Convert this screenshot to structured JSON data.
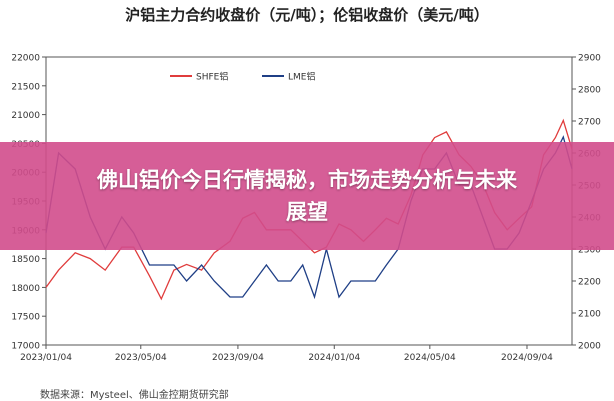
{
  "banner": {
    "text": "佛山铝价今日行情揭秘，市场走势分析与未来展望",
    "overlay_color": "#d24d8c"
  },
  "source_note": "数据来源：Mysteel、佛山金控期货研究部",
  "chart_data": {
    "type": "line",
    "title": "沪铝主力合约收盘价（元/吨）；伦铝收盘价（美元/吨）",
    "xlabel": "",
    "ylabel": "",
    "grid": false,
    "legend_position": "top",
    "x_ticks": [
      "2023/01/04",
      "2023/05/04",
      "2023/09/04",
      "2024/01/04",
      "2024/05/04",
      "2024/09/04"
    ],
    "y_left": {
      "ticks": [
        17000,
        17500,
        18000,
        18500,
        19000,
        19500,
        20000,
        20500,
        21000,
        21500,
        22000
      ],
      "lim": [
        17000,
        22000
      ]
    },
    "y_right": {
      "ticks": [
        2000,
        2100,
        2200,
        2300,
        2400,
        2500,
        2600,
        2700,
        2800,
        2900
      ],
      "lim": [
        2000,
        2900
      ]
    },
    "series": [
      {
        "name": "SHFE铝",
        "axis": "left",
        "color": "#e03c3c",
        "x": [
          "2023-01-04",
          "2023-01-20",
          "2023-02-10",
          "2023-03-01",
          "2023-03-20",
          "2023-04-10",
          "2023-04-25",
          "2023-05-15",
          "2023-05-30",
          "2023-06-15",
          "2023-07-01",
          "2023-07-20",
          "2023-08-05",
          "2023-08-25",
          "2023-09-10",
          "2023-09-25",
          "2023-10-10",
          "2023-10-25",
          "2023-11-10",
          "2023-11-25",
          "2023-12-10",
          "2023-12-25",
          "2024-01-10",
          "2024-01-25",
          "2024-02-10",
          "2024-02-25",
          "2024-03-10",
          "2024-03-25",
          "2024-04-10",
          "2024-04-25",
          "2024-05-10",
          "2024-05-25",
          "2024-06-10",
          "2024-06-25",
          "2024-07-10",
          "2024-07-25",
          "2024-08-10",
          "2024-08-25",
          "2024-09-10",
          "2024-09-25",
          "2024-10-10",
          "2024-10-20",
          "2024-10-31"
        ],
        "values": [
          18000,
          18300,
          18600,
          18500,
          18300,
          18700,
          18700,
          18200,
          17800,
          18300,
          18400,
          18300,
          18600,
          18800,
          19200,
          19300,
          19000,
          19000,
          19000,
          18800,
          18600,
          18700,
          19100,
          19000,
          18800,
          19000,
          19200,
          19100,
          19600,
          20300,
          20600,
          20700,
          20300,
          20100,
          19800,
          19300,
          19000,
          19200,
          19400,
          20300,
          20600,
          20900,
          20400
        ]
      },
      {
        "name": "LME铝",
        "axis": "right",
        "color": "#1f3f86",
        "x": [
          "2023-01-04",
          "2023-01-20",
          "2023-02-10",
          "2023-03-01",
          "2023-03-20",
          "2023-04-10",
          "2023-04-25",
          "2023-05-15",
          "2023-05-30",
          "2023-06-15",
          "2023-07-01",
          "2023-07-20",
          "2023-08-05",
          "2023-08-25",
          "2023-09-10",
          "2023-09-25",
          "2023-10-10",
          "2023-10-25",
          "2023-11-10",
          "2023-11-25",
          "2023-12-10",
          "2023-12-25",
          "2024-01-10",
          "2024-01-25",
          "2024-02-10",
          "2024-02-25",
          "2024-03-10",
          "2024-03-25",
          "2024-04-10",
          "2024-04-25",
          "2024-05-10",
          "2024-05-25",
          "2024-06-10",
          "2024-06-25",
          "2024-07-10",
          "2024-07-25",
          "2024-08-10",
          "2024-08-25",
          "2024-09-10",
          "2024-09-25",
          "2024-10-10",
          "2024-10-20",
          "2024-10-31"
        ],
        "values": [
          2350,
          2600,
          2550,
          2400,
          2300,
          2400,
          2350,
          2250,
          2250,
          2250,
          2200,
          2250,
          2200,
          2150,
          2150,
          2200,
          2250,
          2200,
          2200,
          2250,
          2150,
          2300,
          2150,
          2200,
          2200,
          2200,
          2250,
          2300,
          2450,
          2550,
          2550,
          2600,
          2500,
          2500,
          2400,
          2300,
          2300,
          2350,
          2450,
          2550,
          2600,
          2650,
          2550
        ]
      }
    ]
  }
}
